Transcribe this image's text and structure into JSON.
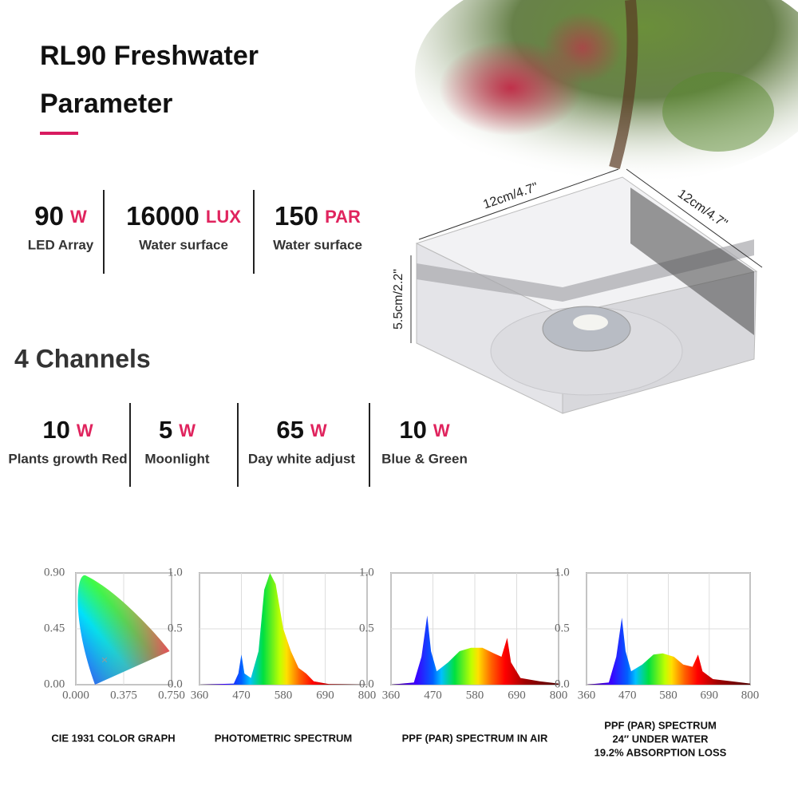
{
  "header": {
    "title_line1": "RL90 Freshwater",
    "title_line2": "Parameter"
  },
  "specs": [
    {
      "value": "90",
      "unit": "W",
      "label": "LED Array"
    },
    {
      "value": "16000",
      "unit": "LUX",
      "label": "Water surface"
    },
    {
      "value": "150",
      "unit": "PAR",
      "label": "Water surface"
    }
  ],
  "channels_title": "4 Channels",
  "channels": [
    {
      "value": "10",
      "unit": "W",
      "label": "Plants growth Red"
    },
    {
      "value": "5",
      "unit": "W",
      "label": "Moonlight"
    },
    {
      "value": "65",
      "unit": "W",
      "label": "Day white adjust"
    },
    {
      "value": "10",
      "unit": "W",
      "label": "Blue & Green"
    }
  ],
  "dimensions": {
    "width": "12cm/4.7\"",
    "depth": "12cm/4.7\"",
    "height": "5.5cm/2.2\""
  },
  "graphs": [
    {
      "caption": [
        "CIE 1931 COLOR GRAPH"
      ],
      "yticks": [
        "0.90",
        "0.45",
        "0.00"
      ],
      "xticks": [
        "0.000",
        "0.375",
        "0.750"
      ]
    },
    {
      "caption": [
        "PHOTOMETRIC SPECTRUM"
      ],
      "yticks": [
        "1.0",
        "0.5",
        "0.0"
      ],
      "xticks": [
        "360",
        "470",
        "580",
        "690",
        "800"
      ]
    },
    {
      "caption": [
        "PPF (PAR) SPECTRUM IN AIR"
      ],
      "yticks": [
        "1.0",
        "0.5",
        "0.0"
      ],
      "xticks": [
        "360",
        "470",
        "580",
        "690",
        "800"
      ]
    },
    {
      "caption": [
        "PPF (PAR) SPECTRUM",
        "24″ UNDER WATER",
        "19.2% ABSORPTION LOSS"
      ],
      "yticks": [
        "1.0",
        "0.5",
        "0.0"
      ],
      "xticks": [
        "360",
        "470",
        "580",
        "690",
        "800"
      ]
    }
  ]
}
